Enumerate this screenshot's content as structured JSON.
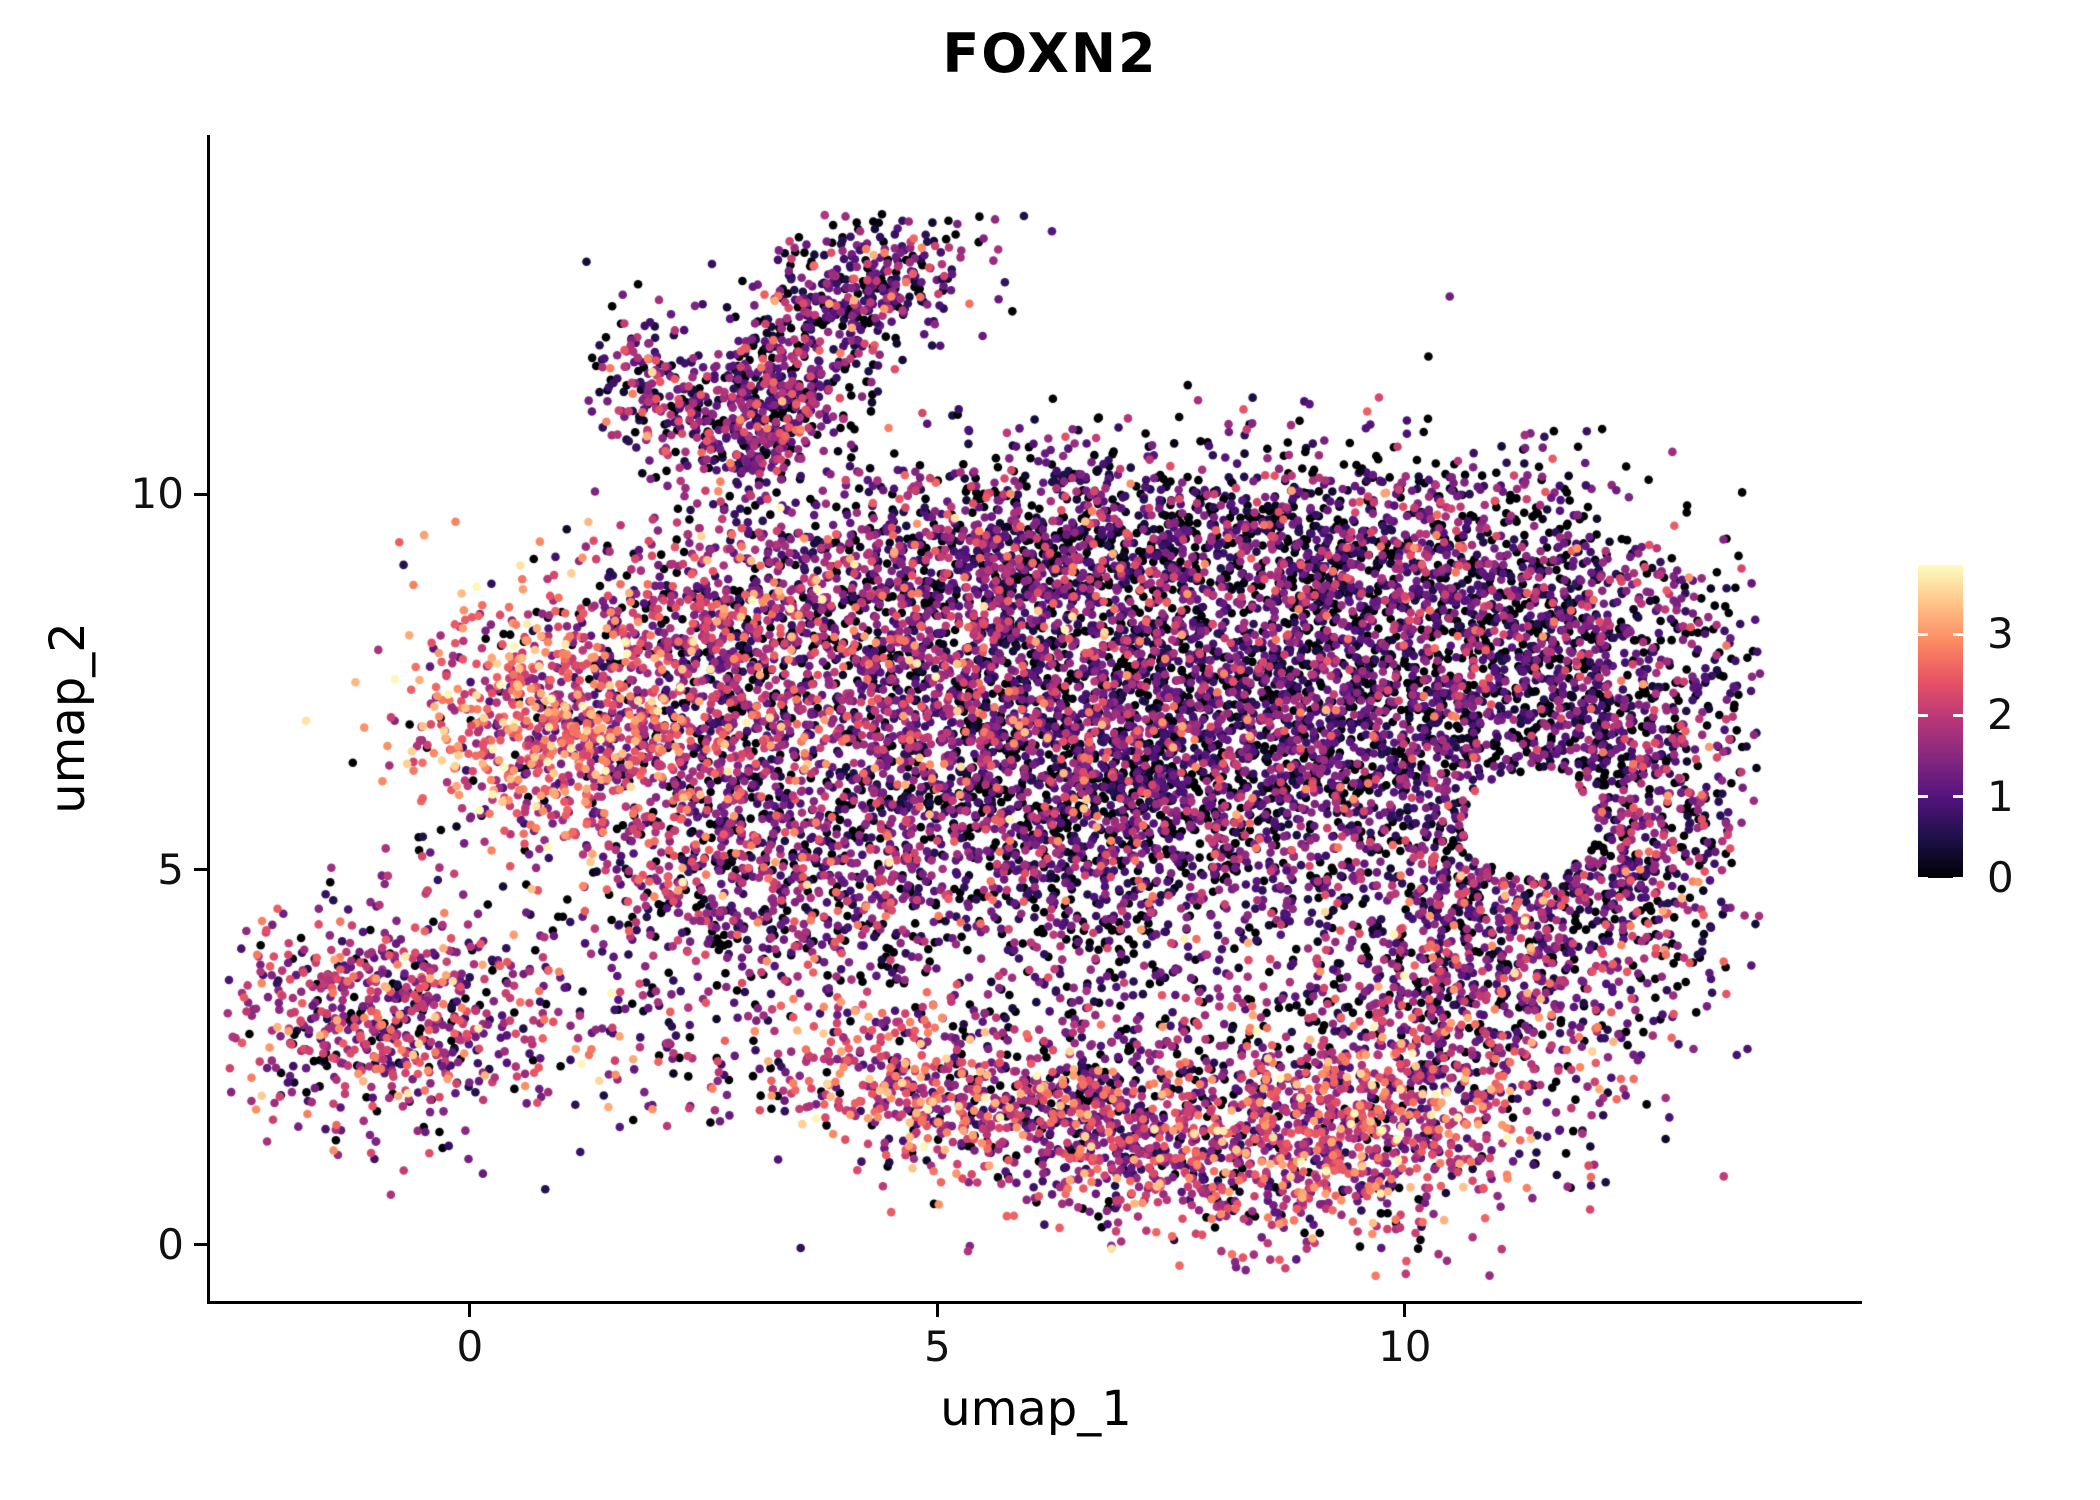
{
  "title": "FOXN2",
  "axes": {
    "x": {
      "label": "umap_1",
      "ticks": [
        0,
        5,
        10
      ]
    },
    "y": {
      "label": "umap_2",
      "ticks": [
        0,
        5,
        10
      ]
    }
  },
  "legend": {
    "ticks": [
      0,
      1,
      2,
      3
    ],
    "min": 0,
    "max": 3.85
  },
  "chart_data": {
    "type": "scatter",
    "title": "FOXN2",
    "xlabel": "umap_1",
    "ylabel": "umap_2",
    "xlim": [
      -2.78,
      14.89
    ],
    "ylim": [
      -0.75,
      14.79
    ],
    "color_scale": {
      "name": "magma",
      "domain": [
        0,
        3.85
      ],
      "stops": [
        [
          0.0,
          "#000004"
        ],
        [
          0.125,
          "#1d1147"
        ],
        [
          0.25,
          "#51127c"
        ],
        [
          0.375,
          "#822681"
        ],
        [
          0.5,
          "#b63679"
        ],
        [
          0.625,
          "#e65164"
        ],
        [
          0.75,
          "#fb8861"
        ],
        [
          0.875,
          "#fec287"
        ],
        [
          1.0,
          "#fcfdbf"
        ]
      ]
    },
    "point_radius_px": 4.3,
    "seed": 42,
    "representation": "gaussian_cluster_approximation",
    "holes": [
      {
        "cx": 11.35,
        "cy": 5.6,
        "r": 0.7
      }
    ],
    "bounds": {
      "xmin": -2.6,
      "xmax": 13.8,
      "ymin": -0.45,
      "ymax": 13.75
    },
    "clusters": [
      {
        "name": "horn-lower",
        "cx": 3.1,
        "cy": 11.0,
        "sx": 0.55,
        "sy": 0.42,
        "rot": 50,
        "n": 450,
        "expr_mean": 1.25,
        "expr_sd": 0.75,
        "zero_frac": 0.15
      },
      {
        "name": "horn-upper",
        "cx": 4.0,
        "cy": 12.6,
        "sx": 0.78,
        "sy": 0.42,
        "rot": 35,
        "n": 480,
        "expr_mean": 1.2,
        "expr_sd": 0.8,
        "zero_frac": 0.18
      },
      {
        "name": "horn-arm",
        "cx": 1.95,
        "cy": 11.35,
        "sx": 0.3,
        "sy": 0.5,
        "rot": 15,
        "n": 160,
        "expr_mean": 1.35,
        "expr_sd": 0.8,
        "zero_frac": 0.12
      },
      {
        "name": "upper-band-1",
        "cx": 5.5,
        "cy": 9.3,
        "sx": 1.3,
        "sy": 0.65,
        "rot": 0,
        "n": 650,
        "expr_mean": 1.1,
        "expr_sd": 0.8,
        "zero_frac": 0.2
      },
      {
        "name": "upper-band-2",
        "cx": 8.0,
        "cy": 9.3,
        "sx": 1.6,
        "sy": 0.7,
        "rot": 0,
        "n": 850,
        "expr_mean": 1.05,
        "expr_sd": 0.8,
        "zero_frac": 0.22
      },
      {
        "name": "upper-band-3",
        "cx": 10.3,
        "cy": 9.0,
        "sx": 1.2,
        "sy": 0.8,
        "rot": 0,
        "n": 650,
        "expr_mean": 1.05,
        "expr_sd": 0.8,
        "zero_frac": 0.22
      },
      {
        "name": "core-left",
        "cx": 4.8,
        "cy": 7.3,
        "sx": 1.3,
        "sy": 1.1,
        "rot": 0,
        "n": 1300,
        "expr_mean": 1.35,
        "expr_sd": 0.85,
        "zero_frac": 0.15
      },
      {
        "name": "core-mid",
        "cx": 7.2,
        "cy": 6.8,
        "sx": 1.5,
        "sy": 1.3,
        "rot": 0,
        "n": 1700,
        "expr_mean": 1.05,
        "expr_sd": 0.8,
        "zero_frac": 0.2
      },
      {
        "name": "core-right",
        "cx": 9.5,
        "cy": 6.8,
        "sx": 1.3,
        "sy": 1.2,
        "rot": 0,
        "n": 1300,
        "expr_mean": 1.0,
        "expr_sd": 0.75,
        "zero_frac": 0.22
      },
      {
        "name": "core-lower",
        "cx": 6.0,
        "cy": 5.2,
        "sx": 1.6,
        "sy": 1.0,
        "rot": 0,
        "n": 850,
        "expr_mean": 1.2,
        "expr_sd": 0.8,
        "zero_frac": 0.18
      },
      {
        "name": "warm-left",
        "cx": 0.9,
        "cy": 7.1,
        "sx": 0.75,
        "sy": 0.85,
        "rot": 0,
        "n": 650,
        "expr_mean": 2.45,
        "expr_sd": 0.7,
        "zero_frac": 0.05
      },
      {
        "name": "warm-left-2",
        "cx": 2.1,
        "cy": 6.6,
        "sx": 1.0,
        "sy": 1.0,
        "rot": 0,
        "n": 700,
        "expr_mean": 1.75,
        "expr_sd": 0.8,
        "zero_frac": 0.1
      },
      {
        "name": "left-upper",
        "cx": 2.9,
        "cy": 8.4,
        "sx": 0.9,
        "sy": 0.7,
        "rot": 0,
        "n": 480,
        "expr_mean": 1.6,
        "expr_sd": 0.85,
        "zero_frac": 0.12
      },
      {
        "name": "lower-left-bulge",
        "cx": 3.2,
        "cy": 4.8,
        "sx": 0.9,
        "sy": 0.8,
        "rot": 0,
        "n": 480,
        "expr_mean": 1.3,
        "expr_sd": 0.8,
        "zero_frac": 0.16
      },
      {
        "name": "bottom-left-island",
        "cx": -0.85,
        "cy": 3.0,
        "sx": 0.85,
        "sy": 0.72,
        "rot": -20,
        "n": 700,
        "expr_mean": 1.7,
        "expr_sd": 0.8,
        "zero_frac": 0.1
      },
      {
        "name": "island-bridge",
        "cx": 2.0,
        "cy": 2.9,
        "sx": 0.8,
        "sy": 0.8,
        "rot": 0,
        "n": 130,
        "expr_mean": 1.4,
        "expr_sd": 0.8,
        "zero_frac": 0.15
      },
      {
        "name": "bottom-arc-1",
        "cx": 4.8,
        "cy": 2.1,
        "sx": 0.8,
        "sy": 0.5,
        "rot": -10,
        "n": 340,
        "expr_mean": 2.2,
        "expr_sd": 0.75,
        "zero_frac": 0.06
      },
      {
        "name": "bottom-arc-2",
        "cx": 6.3,
        "cy": 1.6,
        "sx": 0.9,
        "sy": 0.5,
        "rot": -8,
        "n": 430,
        "expr_mean": 1.6,
        "expr_sd": 0.85,
        "zero_frac": 0.12
      },
      {
        "name": "bottom-arc-3",
        "cx": 8.3,
        "cy": 1.2,
        "sx": 1.2,
        "sy": 0.6,
        "rot": 0,
        "n": 650,
        "expr_mean": 1.9,
        "expr_sd": 0.85,
        "zero_frac": 0.1
      },
      {
        "name": "bottom-arc-4",
        "cx": 9.7,
        "cy": 1.7,
        "sx": 0.9,
        "sy": 0.75,
        "rot": 20,
        "n": 520,
        "expr_mean": 2.05,
        "expr_sd": 0.8,
        "zero_frac": 0.08
      },
      {
        "name": "bottom-scatter",
        "cx": 7.3,
        "cy": 2.7,
        "sx": 1.5,
        "sy": 0.65,
        "rot": 0,
        "n": 380,
        "expr_mean": 1.2,
        "expr_sd": 0.8,
        "zero_frac": 0.2
      },
      {
        "name": "right-bottom",
        "cx": 10.7,
        "cy": 3.2,
        "sx": 1.0,
        "sy": 0.95,
        "rot": 0,
        "n": 650,
        "expr_mean": 1.45,
        "expr_sd": 0.85,
        "zero_frac": 0.14
      },
      {
        "name": "right-lobe-upper",
        "cx": 11.8,
        "cy": 7.5,
        "sx": 1.0,
        "sy": 1.0,
        "rot": 0,
        "n": 780,
        "expr_mean": 1.0,
        "expr_sd": 0.75,
        "zero_frac": 0.22
      },
      {
        "name": "right-edge",
        "cx": 12.6,
        "cy": 5.8,
        "sx": 0.55,
        "sy": 1.2,
        "rot": 0,
        "n": 480,
        "expr_mean": 1.2,
        "expr_sd": 0.8,
        "zero_frac": 0.16
      },
      {
        "name": "right-lobe-lower",
        "cx": 11.3,
        "cy": 4.6,
        "sx": 0.9,
        "sy": 0.6,
        "rot": 0,
        "n": 380,
        "expr_mean": 1.15,
        "expr_sd": 0.8,
        "zero_frac": 0.18
      },
      {
        "name": "diffuse",
        "cx": 6.5,
        "cy": 6.5,
        "sx": 3.2,
        "sy": 2.6,
        "rot": 0,
        "n": 500,
        "expr_mean": 0.9,
        "expr_sd": 0.8,
        "zero_frac": 0.25
      }
    ]
  }
}
